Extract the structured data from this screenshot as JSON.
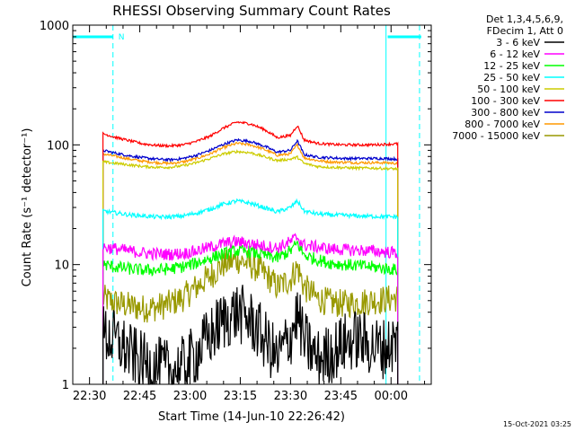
{
  "chart_data": {
    "type": "line",
    "title": "RHESSI Observing Summary Count Rates",
    "xlabel": "Start Time (14-Jun-10 22:26:42)",
    "ylabel": "Count Rate (s⁻¹ detector⁻¹)",
    "yscale": "log",
    "ylim": [
      1,
      1000
    ],
    "xlim_minutes": [
      -5,
      102
    ],
    "x_unit": "minutes after 22:30",
    "y_ticks": [
      {
        "value": 1,
        "label": "1"
      },
      {
        "value": 10,
        "label": "10"
      },
      {
        "value": 100,
        "label": "100"
      },
      {
        "value": 1000,
        "label": "1000"
      }
    ],
    "x_ticks": [
      {
        "value": 0,
        "label": "22:30"
      },
      {
        "value": 15,
        "label": "22:45"
      },
      {
        "value": 30,
        "label": "23:00"
      },
      {
        "value": 45,
        "label": "23:15"
      },
      {
        "value": 60,
        "label": "23:30"
      },
      {
        "value": 75,
        "label": "23:45"
      },
      {
        "value": 90,
        "label": "00:00"
      }
    ],
    "data_range_minutes": [
      4,
      92
    ],
    "legend": {
      "position": "top-right",
      "header_lines": [
        "Det 1,3,4,5,6,9,",
        "FDecim 1, Att 0"
      ]
    },
    "series": [
      {
        "name": "3 - 6 keV",
        "color": "#000000",
        "x": [
          4,
          8,
          12,
          16,
          20,
          24,
          28,
          32,
          36,
          40,
          44,
          48,
          52,
          56,
          60,
          62,
          64,
          68,
          72,
          76,
          80,
          84,
          88,
          92
        ],
        "y": [
          2.6,
          2.3,
          1.8,
          1.5,
          1.4,
          1.3,
          1.4,
          1.8,
          2.5,
          3.4,
          4.0,
          3.4,
          2.4,
          1.6,
          2.5,
          3.8,
          2.3,
          1.6,
          1.8,
          2.2,
          2.4,
          2.1,
          2.0,
          2.3
        ]
      },
      {
        "name": "6 - 12 keV",
        "color": "#ff00ff",
        "x": [
          4,
          8,
          12,
          16,
          20,
          24,
          28,
          32,
          36,
          40,
          44,
          48,
          52,
          56,
          60,
          62,
          64,
          68,
          72,
          76,
          80,
          84,
          88,
          92
        ],
        "y": [
          14,
          13.5,
          13,
          12.5,
          12.3,
          12.2,
          12.4,
          13,
          14,
          15,
          15.5,
          15,
          14.3,
          13.8,
          15.5,
          17,
          14.5,
          14,
          13.5,
          13.3,
          13.2,
          13,
          12.8,
          12.5
        ]
      },
      {
        "name": "12 - 25 keV",
        "color": "#00ff00",
        "x": [
          4,
          8,
          12,
          16,
          20,
          24,
          28,
          32,
          36,
          40,
          44,
          48,
          52,
          56,
          60,
          62,
          64,
          68,
          72,
          76,
          80,
          84,
          88,
          92
        ],
        "y": [
          10,
          9.5,
          9.2,
          9,
          9,
          9.2,
          9.6,
          10.3,
          11.3,
          12.3,
          13,
          12.8,
          12,
          11.3,
          13,
          15,
          12,
          11,
          10.3,
          10,
          9.8,
          9.6,
          9.3,
          9
        ]
      },
      {
        "name": "25 - 50 keV",
        "color": "#00ffff",
        "x": [
          4,
          8,
          12,
          16,
          20,
          24,
          28,
          32,
          36,
          40,
          44,
          48,
          52,
          56,
          60,
          62,
          64,
          68,
          72,
          76,
          80,
          84,
          88,
          92
        ],
        "y": [
          28,
          27,
          26,
          25.5,
          25,
          25,
          25.5,
          27,
          29,
          32,
          34,
          32.5,
          30,
          27.5,
          30,
          34,
          28,
          26.5,
          26,
          25.8,
          25.5,
          25.3,
          25.2,
          25
        ]
      },
      {
        "name": "50 - 100 keV",
        "color": "#cccc00",
        "x": [
          4,
          8,
          12,
          16,
          20,
          24,
          28,
          32,
          36,
          40,
          44,
          48,
          52,
          56,
          60,
          62,
          64,
          68,
          72,
          76,
          80,
          84,
          88,
          92
        ],
        "y": [
          72,
          70,
          68,
          66,
          65,
          65,
          67,
          71,
          77,
          84,
          88,
          86,
          80,
          74,
          76,
          79,
          70,
          66,
          65,
          64.5,
          64,
          64,
          63.5,
          63
        ]
      },
      {
        "name": "100 - 300 keV",
        "color": "#ff0000",
        "x": [
          4,
          8,
          12,
          16,
          20,
          24,
          28,
          32,
          36,
          40,
          44,
          48,
          52,
          56,
          60,
          62,
          64,
          68,
          72,
          76,
          80,
          84,
          88,
          92
        ],
        "y": [
          124,
          115,
          108,
          102,
          99,
          98,
          100,
          107,
          118,
          138,
          155,
          150,
          135,
          115,
          120,
          145,
          110,
          103,
          101,
          100,
          100,
          100,
          101,
          102
        ]
      },
      {
        "name": "300 - 800 keV",
        "color": "#0000cc",
        "x": [
          4,
          8,
          12,
          16,
          20,
          24,
          28,
          32,
          36,
          40,
          44,
          48,
          52,
          56,
          60,
          62,
          64,
          68,
          72,
          76,
          80,
          84,
          88,
          92
        ],
        "y": [
          90,
          85,
          81,
          78,
          76,
          75,
          77,
          82,
          90,
          101,
          110,
          107,
          98,
          87,
          90,
          108,
          83,
          79,
          78,
          77,
          77,
          77,
          77,
          76
        ]
      },
      {
        "name": "800 - 7000 keV",
        "color": "#ff9900",
        "x": [
          4,
          8,
          12,
          16,
          20,
          24,
          28,
          32,
          36,
          40,
          44,
          48,
          52,
          56,
          60,
          62,
          64,
          68,
          72,
          76,
          80,
          84,
          88,
          92
        ],
        "y": [
          84,
          80,
          76,
          73,
          71,
          70,
          72,
          77,
          84,
          95,
          103,
          100,
          92,
          82,
          84,
          100,
          78,
          74,
          72,
          71.5,
          71,
          71,
          71,
          70
        ]
      },
      {
        "name": "7000 - 15000 keV",
        "color": "#999900",
        "x": [
          4,
          8,
          12,
          16,
          20,
          24,
          28,
          32,
          36,
          40,
          44,
          48,
          52,
          56,
          60,
          62,
          64,
          68,
          72,
          76,
          80,
          84,
          88,
          92
        ],
        "y": [
          5.2,
          4.8,
          4.5,
          4.3,
          4.4,
          4.7,
          5.3,
          6.5,
          8,
          10,
          11,
          10,
          8.5,
          6.5,
          7.5,
          9.5,
          6.5,
          5.2,
          4.8,
          4.7,
          4.8,
          5,
          5.1,
          5.3
        ]
      }
    ],
    "attenuator_markers": [
      {
        "label": "N",
        "minutes": 7,
        "color": "#00ffff"
      },
      {
        "label": "",
        "minutes": 89,
        "color": "#00ffff"
      }
    ],
    "saa_bars": [
      {
        "from_minutes": -5,
        "to_minutes": 7,
        "color": "#00ffff"
      },
      {
        "from_minutes": 89,
        "to_minutes": 99,
        "color": "#00ffff"
      }
    ],
    "solid_vertical_markers_minutes": [
      -5,
      88.5
    ],
    "dashed_vertical_markers_minutes": [
      7,
      98.5
    ]
  },
  "footer_timestamp": "15-Oct-2021 03:25"
}
